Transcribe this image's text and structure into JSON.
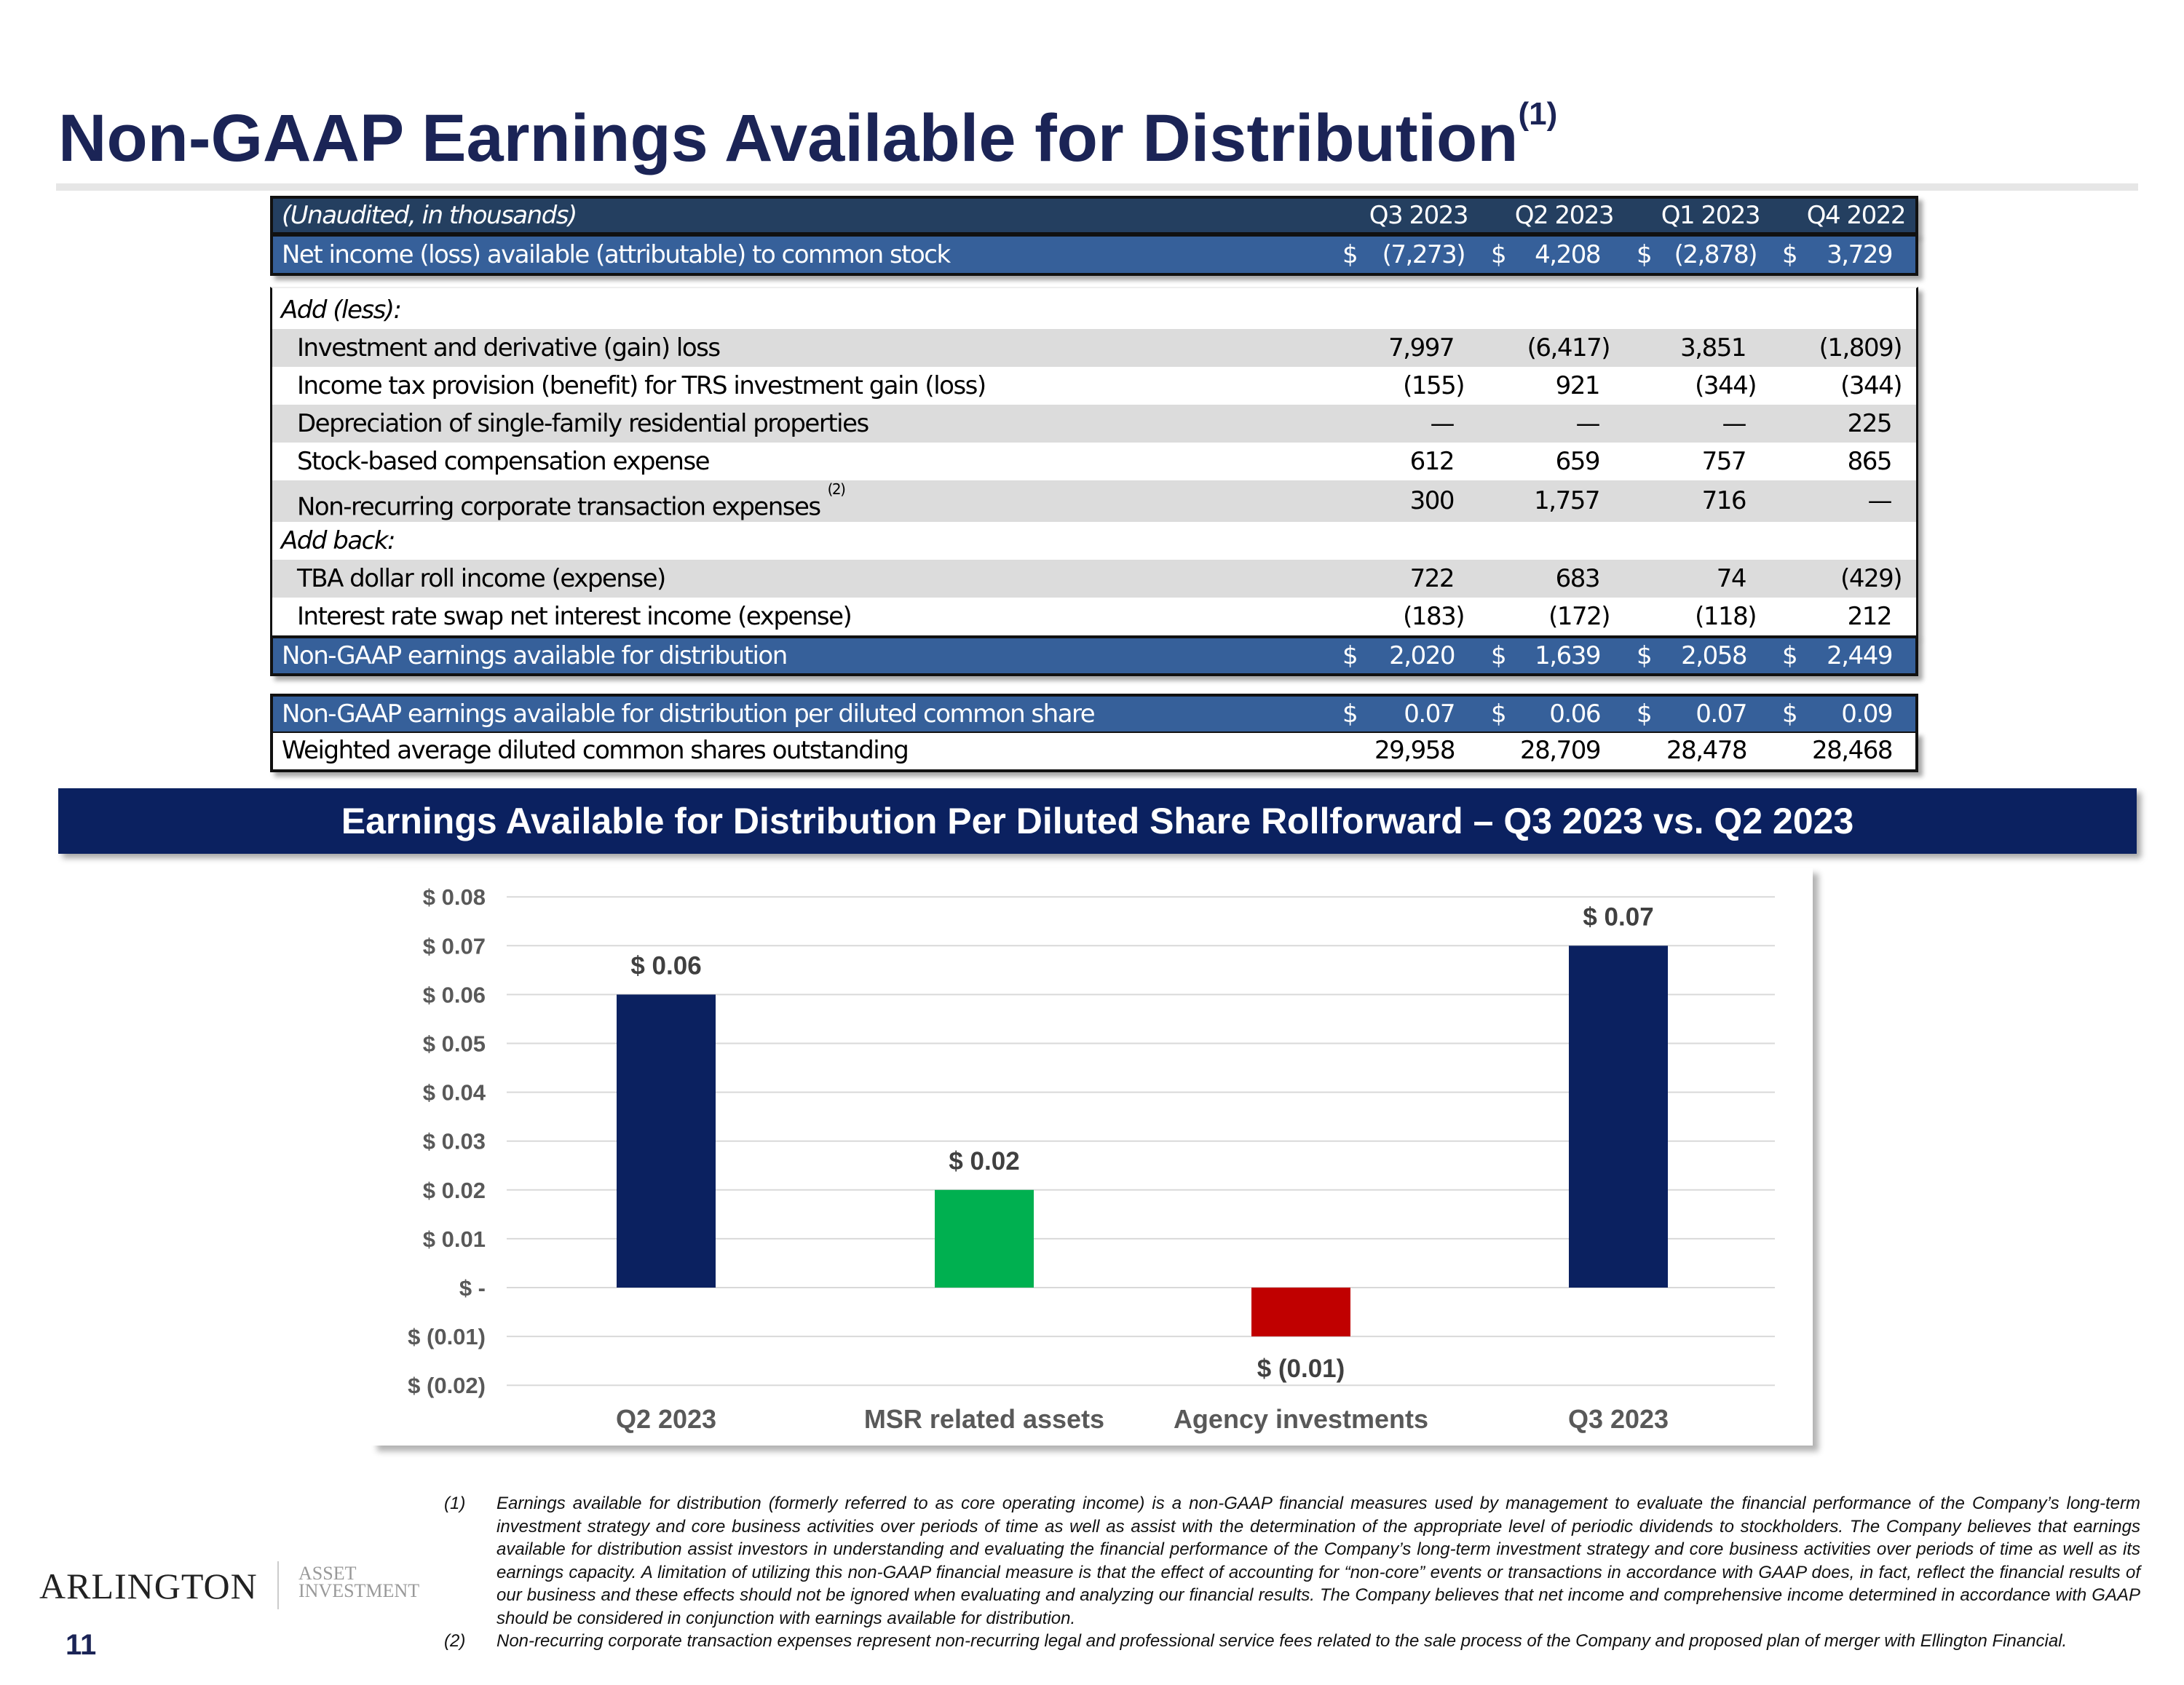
{
  "title": {
    "text": "Non-GAAP Earnings Available for Distribution",
    "sup": "(1)"
  },
  "table": {
    "note": "(Unaudited, in thousands)",
    "columns": [
      "Q3 2023",
      "Q2 2023",
      "Q1 2023",
      "Q4 2022"
    ],
    "currency": "$",
    "net_income": {
      "label": "Net income (loss) available (attributable) to common stock",
      "values": [
        "(7,273)",
        "4,208",
        "(2,878)",
        "3,729"
      ]
    },
    "add_less_label": "Add (less):",
    "add_less": [
      {
        "label": "Investment and derivative (gain) loss",
        "values": [
          "7,997",
          "(6,417)",
          "3,851",
          "(1,809)"
        ]
      },
      {
        "label": "Income tax provision (benefit) for TRS investment gain (loss)",
        "values": [
          "(155)",
          "921",
          "(344)",
          "(344)"
        ]
      },
      {
        "label": "Depreciation of single-family residential properties",
        "values": [
          "—",
          "—",
          "—",
          "225"
        ]
      },
      {
        "label": "Stock-based compensation expense",
        "values": [
          "612",
          "659",
          "757",
          "865"
        ]
      },
      {
        "label": "Non-recurring corporate transaction expenses",
        "sup": "(2)",
        "values": [
          "300",
          "1,757",
          "716",
          "—"
        ]
      }
    ],
    "add_back_label": "Add back:",
    "add_back": [
      {
        "label": "TBA dollar roll income (expense)",
        "values": [
          "722",
          "683",
          "74",
          "(429)"
        ]
      },
      {
        "label": "Interest rate swap net interest income (expense)",
        "values": [
          "(183)",
          "(172)",
          "(118)",
          "212"
        ]
      }
    ],
    "non_gaap": {
      "label": "Non-GAAP earnings available for distribution",
      "values": [
        "2,020",
        "1,639",
        "2,058",
        "2,449"
      ]
    },
    "per_share": {
      "label": "Non-GAAP earnings available for distribution per diluted common share",
      "values": [
        "0.07",
        "0.06",
        "0.07",
        "0.09"
      ]
    },
    "shares": {
      "label": "Weighted average diluted common shares outstanding",
      "values": [
        "29,958",
        "28,709",
        "28,478",
        "28,468"
      ]
    }
  },
  "banner": "Earnings Available for Distribution Per Diluted Share Rollforward – Q3 2023 vs. Q2 2023",
  "chart_data": {
    "type": "bar",
    "subtype": "waterfall",
    "title": "Earnings Available for Distribution Per Diluted Share Rollforward – Q3 2023 vs. Q2 2023",
    "categories": [
      "Q2 2023",
      "MSR related assets",
      "Agency investments",
      "Q3 2023"
    ],
    "values": [
      0.06,
      0.02,
      -0.01,
      0.07
    ],
    "bar_base": [
      0,
      0,
      0,
      0
    ],
    "data_labels": [
      "$ 0.06",
      "$ 0.02",
      "$ (0.01)",
      "$ 0.07"
    ],
    "colors": [
      "#0b2160",
      "#00b050",
      "#c00000",
      "#0b2160"
    ],
    "ylim": [
      -0.02,
      0.08
    ],
    "yticks": [
      0.08,
      0.07,
      0.06,
      0.05,
      0.04,
      0.03,
      0.02,
      0.01,
      0,
      -0.01,
      -0.02
    ],
    "ytick_labels": [
      "$ 0.08",
      "$ 0.07",
      "$ 0.06",
      "$ 0.05",
      "$ 0.04",
      "$ 0.03",
      "$ 0.02",
      "$ 0.01",
      "$ -",
      "$ (0.01)",
      "$ (0.02)"
    ],
    "grid": true,
    "xlabel": "",
    "ylabel": ""
  },
  "footnotes": [
    {
      "num": "(1)",
      "text": "Earnings available for distribution (formerly referred to as core operating income) is a non-GAAP financial measures used by management to evaluate the financial performance of the Company’s long-term investment strategy and core business activities over periods of time as well as assist with the determination of the appropriate level of periodic dividends to stockholders. The Company believes that earnings available for distribution assist investors in understanding and evaluating the financial performance of the Company’s long-term investment strategy and core business activities over periods of time as well as its earnings capacity. A limitation of utilizing this non-GAAP financial measure is that the effect of accounting for “non-core” events or transactions in accordance with GAAP does, in fact, reflect the financial results of our business and these effects should not be ignored when evaluating and analyzing our financial results. The Company believes that net income and comprehensive income determined in accordance with GAAP should be considered in conjunction with earnings available for distribution."
    },
    {
      "num": "(2)",
      "text": "Non-recurring corporate transaction expenses represent non-recurring legal and professional service fees related to the sale process of the Company and proposed plan of merger with Ellington Financial."
    }
  ],
  "logo": {
    "main": "ARLINGTON",
    "sub1": "ASSET",
    "sub2": "INVESTMENT"
  },
  "page_number": "11"
}
